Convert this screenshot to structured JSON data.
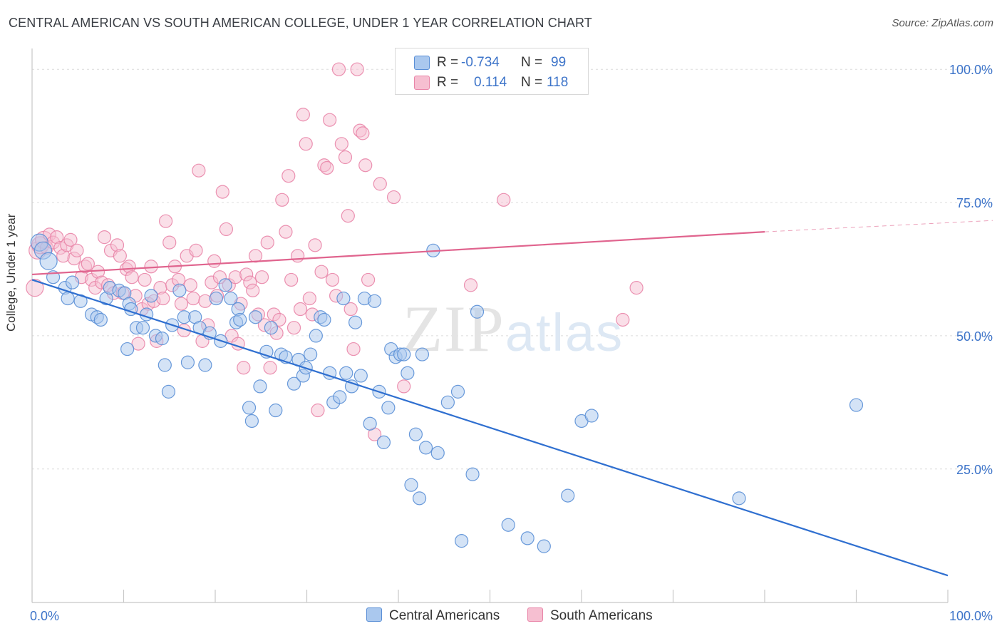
{
  "title": "CENTRAL AMERICAN VS SOUTH AMERICAN COLLEGE, UNDER 1 YEAR CORRELATION CHART",
  "source": "Source: ZipAtlas.com",
  "watermark": "ZIPatlas",
  "colors": {
    "blue_fill": "#aac8ee",
    "blue_stroke": "#5a8fd6",
    "blue_line": "#2f6fd0",
    "pink_fill": "#f6bfd1",
    "pink_stroke": "#e985a8",
    "pink_line": "#e0648e",
    "tick_text": "#3d74c9",
    "grid": "#dcdcdc"
  },
  "legend": {
    "r_label": "R =",
    "n_label": "N =",
    "blue": {
      "r": "-0.734",
      "n": "99"
    },
    "pink": {
      "r": "0.114",
      "n": "118"
    }
  },
  "bottom_legend": {
    "blue": "Central Americans",
    "pink": "South Americans"
  },
  "chart_data": {
    "type": "scatter",
    "title": "CENTRAL AMERICAN VS SOUTH AMERICAN COLLEGE, UNDER 1 YEAR CORRELATION CHART",
    "xlabel": "",
    "ylabel": "College, Under 1 year",
    "xlim": [
      0,
      100
    ],
    "ylim": [
      0,
      105
    ],
    "x_tick_labels": [
      "0.0%",
      "100.0%"
    ],
    "y_ticks": [
      25,
      50,
      75,
      100
    ],
    "y_tick_labels": [
      "25.0%",
      "50.0%",
      "75.0%",
      "100.0%"
    ],
    "grid": true,
    "series": [
      {
        "name": "Central Americans",
        "color": "blue",
        "trend": {
          "x0": 0,
          "y0": 60.5,
          "x1": 100,
          "y1": 5.0
        },
        "points": [
          [
            0.8,
            67.5
          ],
          [
            1.2,
            66
          ],
          [
            1.8,
            64
          ],
          [
            2.3,
            61
          ],
          [
            3.6,
            59
          ],
          [
            3.9,
            57
          ],
          [
            4.4,
            60
          ],
          [
            5.3,
            56.5
          ],
          [
            6.5,
            54
          ],
          [
            7.1,
            53.5
          ],
          [
            7.5,
            53
          ],
          [
            8.1,
            57
          ],
          [
            8.5,
            59
          ],
          [
            9.5,
            58.5
          ],
          [
            10.1,
            58
          ],
          [
            10.4,
            47.5
          ],
          [
            10.6,
            56
          ],
          [
            10.8,
            55
          ],
          [
            11.4,
            51.5
          ],
          [
            12.1,
            51.5
          ],
          [
            12.5,
            54
          ],
          [
            13.0,
            57.5
          ],
          [
            13.5,
            50
          ],
          [
            14.2,
            49.5
          ],
          [
            14.5,
            44.5
          ],
          [
            14.9,
            39.5
          ],
          [
            15.3,
            52
          ],
          [
            16.1,
            58.5
          ],
          [
            16.6,
            53.5
          ],
          [
            17.0,
            45
          ],
          [
            17.8,
            53.5
          ],
          [
            18.3,
            51.5
          ],
          [
            18.9,
            44.5
          ],
          [
            19.4,
            50.5
          ],
          [
            20.1,
            57
          ],
          [
            20.6,
            49
          ],
          [
            21.1,
            59.5
          ],
          [
            21.7,
            57
          ],
          [
            22.3,
            52.5
          ],
          [
            22.5,
            55
          ],
          [
            22.7,
            53
          ],
          [
            23.7,
            36.5
          ],
          [
            24.0,
            34
          ],
          [
            24.4,
            53.5
          ],
          [
            24.9,
            40.5
          ],
          [
            25.6,
            47
          ],
          [
            26.1,
            51.5
          ],
          [
            26.6,
            36
          ],
          [
            27.2,
            46.5
          ],
          [
            27.7,
            46
          ],
          [
            28.6,
            41
          ],
          [
            29.1,
            45.5
          ],
          [
            29.6,
            42.5
          ],
          [
            29.9,
            44
          ],
          [
            30.4,
            46.5
          ],
          [
            31.0,
            50
          ],
          [
            31.5,
            53.5
          ],
          [
            31.9,
            53
          ],
          [
            32.5,
            43
          ],
          [
            32.9,
            37.5
          ],
          [
            33.6,
            38.5
          ],
          [
            34.0,
            57
          ],
          [
            34.3,
            43
          ],
          [
            34.9,
            40.5
          ],
          [
            35.3,
            52.5
          ],
          [
            35.9,
            42.5
          ],
          [
            36.3,
            57
          ],
          [
            36.9,
            33.5
          ],
          [
            37.4,
            56.5
          ],
          [
            37.9,
            39.5
          ],
          [
            38.4,
            30
          ],
          [
            38.9,
            36.5
          ],
          [
            39.2,
            47.5
          ],
          [
            39.7,
            46
          ],
          [
            40.2,
            46.5
          ],
          [
            40.6,
            46.5
          ],
          [
            41.0,
            43
          ],
          [
            41.4,
            22
          ],
          [
            41.9,
            31.5
          ],
          [
            42.3,
            19.5
          ],
          [
            42.6,
            46.5
          ],
          [
            43.0,
            29
          ],
          [
            43.8,
            66
          ],
          [
            44.3,
            28
          ],
          [
            45.4,
            37.5
          ],
          [
            46.5,
            39.5
          ],
          [
            46.9,
            11.5
          ],
          [
            48.1,
            24
          ],
          [
            48.6,
            54.5
          ],
          [
            52.0,
            14.5
          ],
          [
            54.1,
            12
          ],
          [
            55.9,
            10.5
          ],
          [
            58.5,
            20
          ],
          [
            60.0,
            34
          ],
          [
            61.1,
            35
          ],
          [
            77.2,
            19.5
          ],
          [
            90.0,
            37
          ]
        ]
      },
      {
        "name": "South Americans",
        "color": "pink",
        "trend": {
          "x0": 0,
          "y0": 61.5,
          "x1": 80,
          "y1": 69.5,
          "x_dash_end": 100,
          "y_dash_end": 71.5
        },
        "points": [
          [
            0.3,
            59
          ],
          [
            0.6,
            66
          ],
          [
            0.9,
            67
          ],
          [
            1.3,
            68
          ],
          [
            1.6,
            66.5
          ],
          [
            1.9,
            69
          ],
          [
            2.3,
            67.5
          ],
          [
            2.7,
            68.5
          ],
          [
            3.1,
            66.5
          ],
          [
            3.4,
            65
          ],
          [
            3.8,
            67
          ],
          [
            4.2,
            68
          ],
          [
            4.6,
            64.5
          ],
          [
            4.9,
            66
          ],
          [
            5.4,
            61
          ],
          [
            5.8,
            63
          ],
          [
            6.1,
            63.5
          ],
          [
            6.5,
            60.5
          ],
          [
            6.9,
            59
          ],
          [
            7.2,
            62
          ],
          [
            7.6,
            60
          ],
          [
            7.9,
            68.5
          ],
          [
            8.3,
            59.5
          ],
          [
            8.6,
            66
          ],
          [
            8.9,
            58
          ],
          [
            9.3,
            67
          ],
          [
            9.6,
            65
          ],
          [
            9.9,
            58
          ],
          [
            10.3,
            62.5
          ],
          [
            10.6,
            63
          ],
          [
            10.9,
            61
          ],
          [
            11.3,
            57.5
          ],
          [
            11.6,
            48.5
          ],
          [
            12.0,
            55
          ],
          [
            12.3,
            60.5
          ],
          [
            12.7,
            56
          ],
          [
            13.0,
            63
          ],
          [
            13.3,
            56.5
          ],
          [
            13.6,
            49
          ],
          [
            14.0,
            59
          ],
          [
            14.3,
            57
          ],
          [
            14.6,
            71.5
          ],
          [
            15.0,
            67.5
          ],
          [
            15.3,
            59.5
          ],
          [
            15.6,
            63
          ],
          [
            16.0,
            60.5
          ],
          [
            16.3,
            56
          ],
          [
            16.6,
            51
          ],
          [
            16.9,
            65
          ],
          [
            17.3,
            59.5
          ],
          [
            17.6,
            57
          ],
          [
            17.9,
            66
          ],
          [
            18.2,
            81
          ],
          [
            18.6,
            49
          ],
          [
            18.9,
            56.5
          ],
          [
            19.2,
            52
          ],
          [
            19.6,
            60
          ],
          [
            19.9,
            64
          ],
          [
            20.2,
            57.5
          ],
          [
            20.5,
            61
          ],
          [
            20.8,
            77
          ],
          [
            21.2,
            70
          ],
          [
            21.5,
            59.5
          ],
          [
            21.8,
            50
          ],
          [
            22.2,
            61
          ],
          [
            22.5,
            48.5
          ],
          [
            22.8,
            56
          ],
          [
            23.1,
            44
          ],
          [
            23.4,
            61.5
          ],
          [
            23.8,
            60
          ],
          [
            24.1,
            58.5
          ],
          [
            24.4,
            65
          ],
          [
            24.7,
            54
          ],
          [
            25.1,
            61
          ],
          [
            25.4,
            52
          ],
          [
            25.7,
            67.5
          ],
          [
            26.0,
            44
          ],
          [
            26.4,
            54
          ],
          [
            26.7,
            50.5
          ],
          [
            27.0,
            53
          ],
          [
            27.3,
            75.5
          ],
          [
            27.7,
            69.5
          ],
          [
            28.0,
            80
          ],
          [
            28.3,
            60.5
          ],
          [
            28.6,
            51.5
          ],
          [
            29.0,
            65
          ],
          [
            29.3,
            55
          ],
          [
            29.6,
            91.5
          ],
          [
            29.9,
            86
          ],
          [
            30.3,
            57
          ],
          [
            30.6,
            54
          ],
          [
            30.9,
            67
          ],
          [
            31.2,
            36
          ],
          [
            31.6,
            62
          ],
          [
            31.9,
            82
          ],
          [
            32.2,
            81.5
          ],
          [
            32.5,
            90.5
          ],
          [
            32.8,
            60.5
          ],
          [
            33.2,
            57.5
          ],
          [
            33.5,
            100
          ],
          [
            33.8,
            86
          ],
          [
            34.2,
            83.5
          ],
          [
            34.5,
            72.5
          ],
          [
            34.8,
            55
          ],
          [
            35.1,
            47.5
          ],
          [
            35.5,
            100
          ],
          [
            35.8,
            88.5
          ],
          [
            36.1,
            88
          ],
          [
            36.4,
            82
          ],
          [
            36.7,
            60.5
          ],
          [
            37.4,
            31.5
          ],
          [
            38.0,
            78.5
          ],
          [
            39.5,
            76
          ],
          [
            40.6,
            40.5
          ],
          [
            47.9,
            59.5
          ],
          [
            51.5,
            75.5
          ],
          [
            64.5,
            53
          ],
          [
            66.0,
            59
          ]
        ]
      }
    ]
  }
}
